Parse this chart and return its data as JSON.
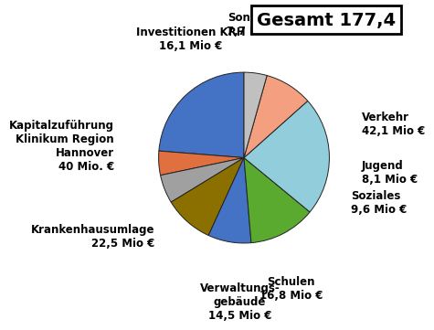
{
  "labels": [
    "Verkehr\n42,1 Mio €",
    "Jugend\n8,1 Mio €",
    "Soziales\n9,6 Mio €",
    "Schulen\n16,8 Mio €",
    "Verwaltungs-\ngebäude\n14,5 Mio €",
    "Krankenhausumlage\n22,5 Mio €",
    "Kapitalzuführung\nKlinikum Region\nHannover\n40 Mio. €",
    "Investitionen KRH\n16,1 Mio €",
    "Sonstige\n7,7 Mio €"
  ],
  "values": [
    42.1,
    8.1,
    9.6,
    16.8,
    14.5,
    22.5,
    40.0,
    16.1,
    7.7
  ],
  "colors": [
    "#4472C4",
    "#E07040",
    "#A0A0A0",
    "#8B7000",
    "#4472C4",
    "#5AAA30",
    "#92CDDC",
    "#F4A080",
    "#C0C0C0"
  ],
  "startangle": 90,
  "title": "Gesamt 177,4",
  "background_color": "#FFFFFF",
  "label_fontsize": 8.5,
  "title_fontsize": 14
}
